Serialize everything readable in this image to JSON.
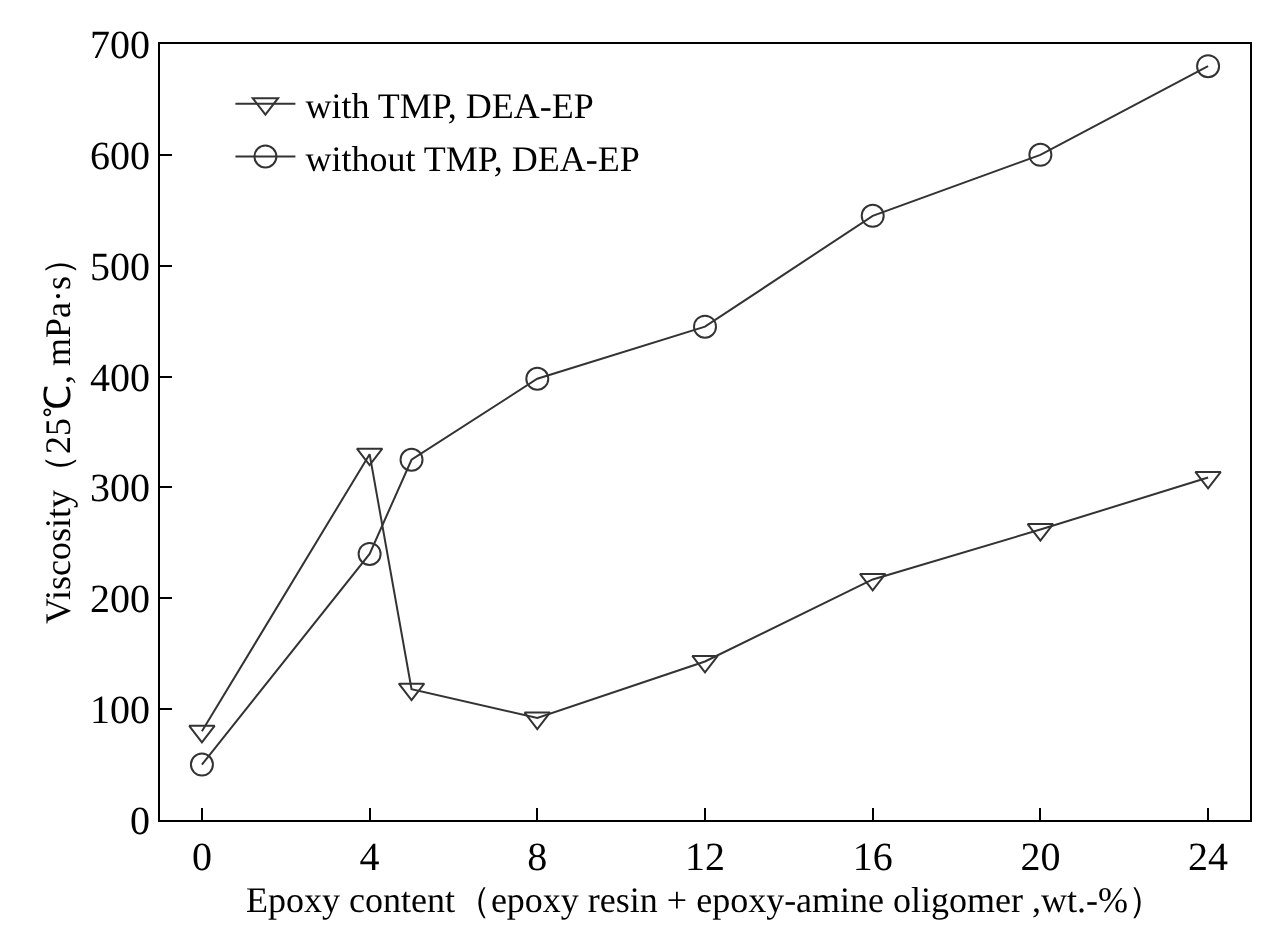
{
  "chart_data": {
    "type": "line",
    "xlabel": "Epoxy content（epoxy resin + epoxy-amine oligomer ,wt.-%）",
    "ylabel": "Viscosity（25℃, mPa·s）",
    "x": [
      0,
      4,
      5,
      8,
      12,
      16,
      20,
      24
    ],
    "series": [
      {
        "name": "with TMP, DEA-EP",
        "color": "#333333",
        "marker": "triangle-down",
        "values": [
          80,
          330,
          118,
          92,
          143,
          217,
          262,
          309
        ]
      },
      {
        "name": "without TMP, DEA-EP",
        "color": "#333333",
        "marker": "circle",
        "values": [
          50,
          240,
          325,
          398,
          445,
          545,
          600,
          680
        ]
      }
    ],
    "xlim": [
      -1,
      25
    ],
    "xticks": [
      0,
      4,
      8,
      12,
      16,
      20,
      24
    ],
    "ylim": [
      0,
      700
    ],
    "yticks": [
      0,
      100,
      200,
      300,
      400,
      500,
      600,
      700
    ],
    "legend": "top left",
    "line_style": "solid"
  }
}
